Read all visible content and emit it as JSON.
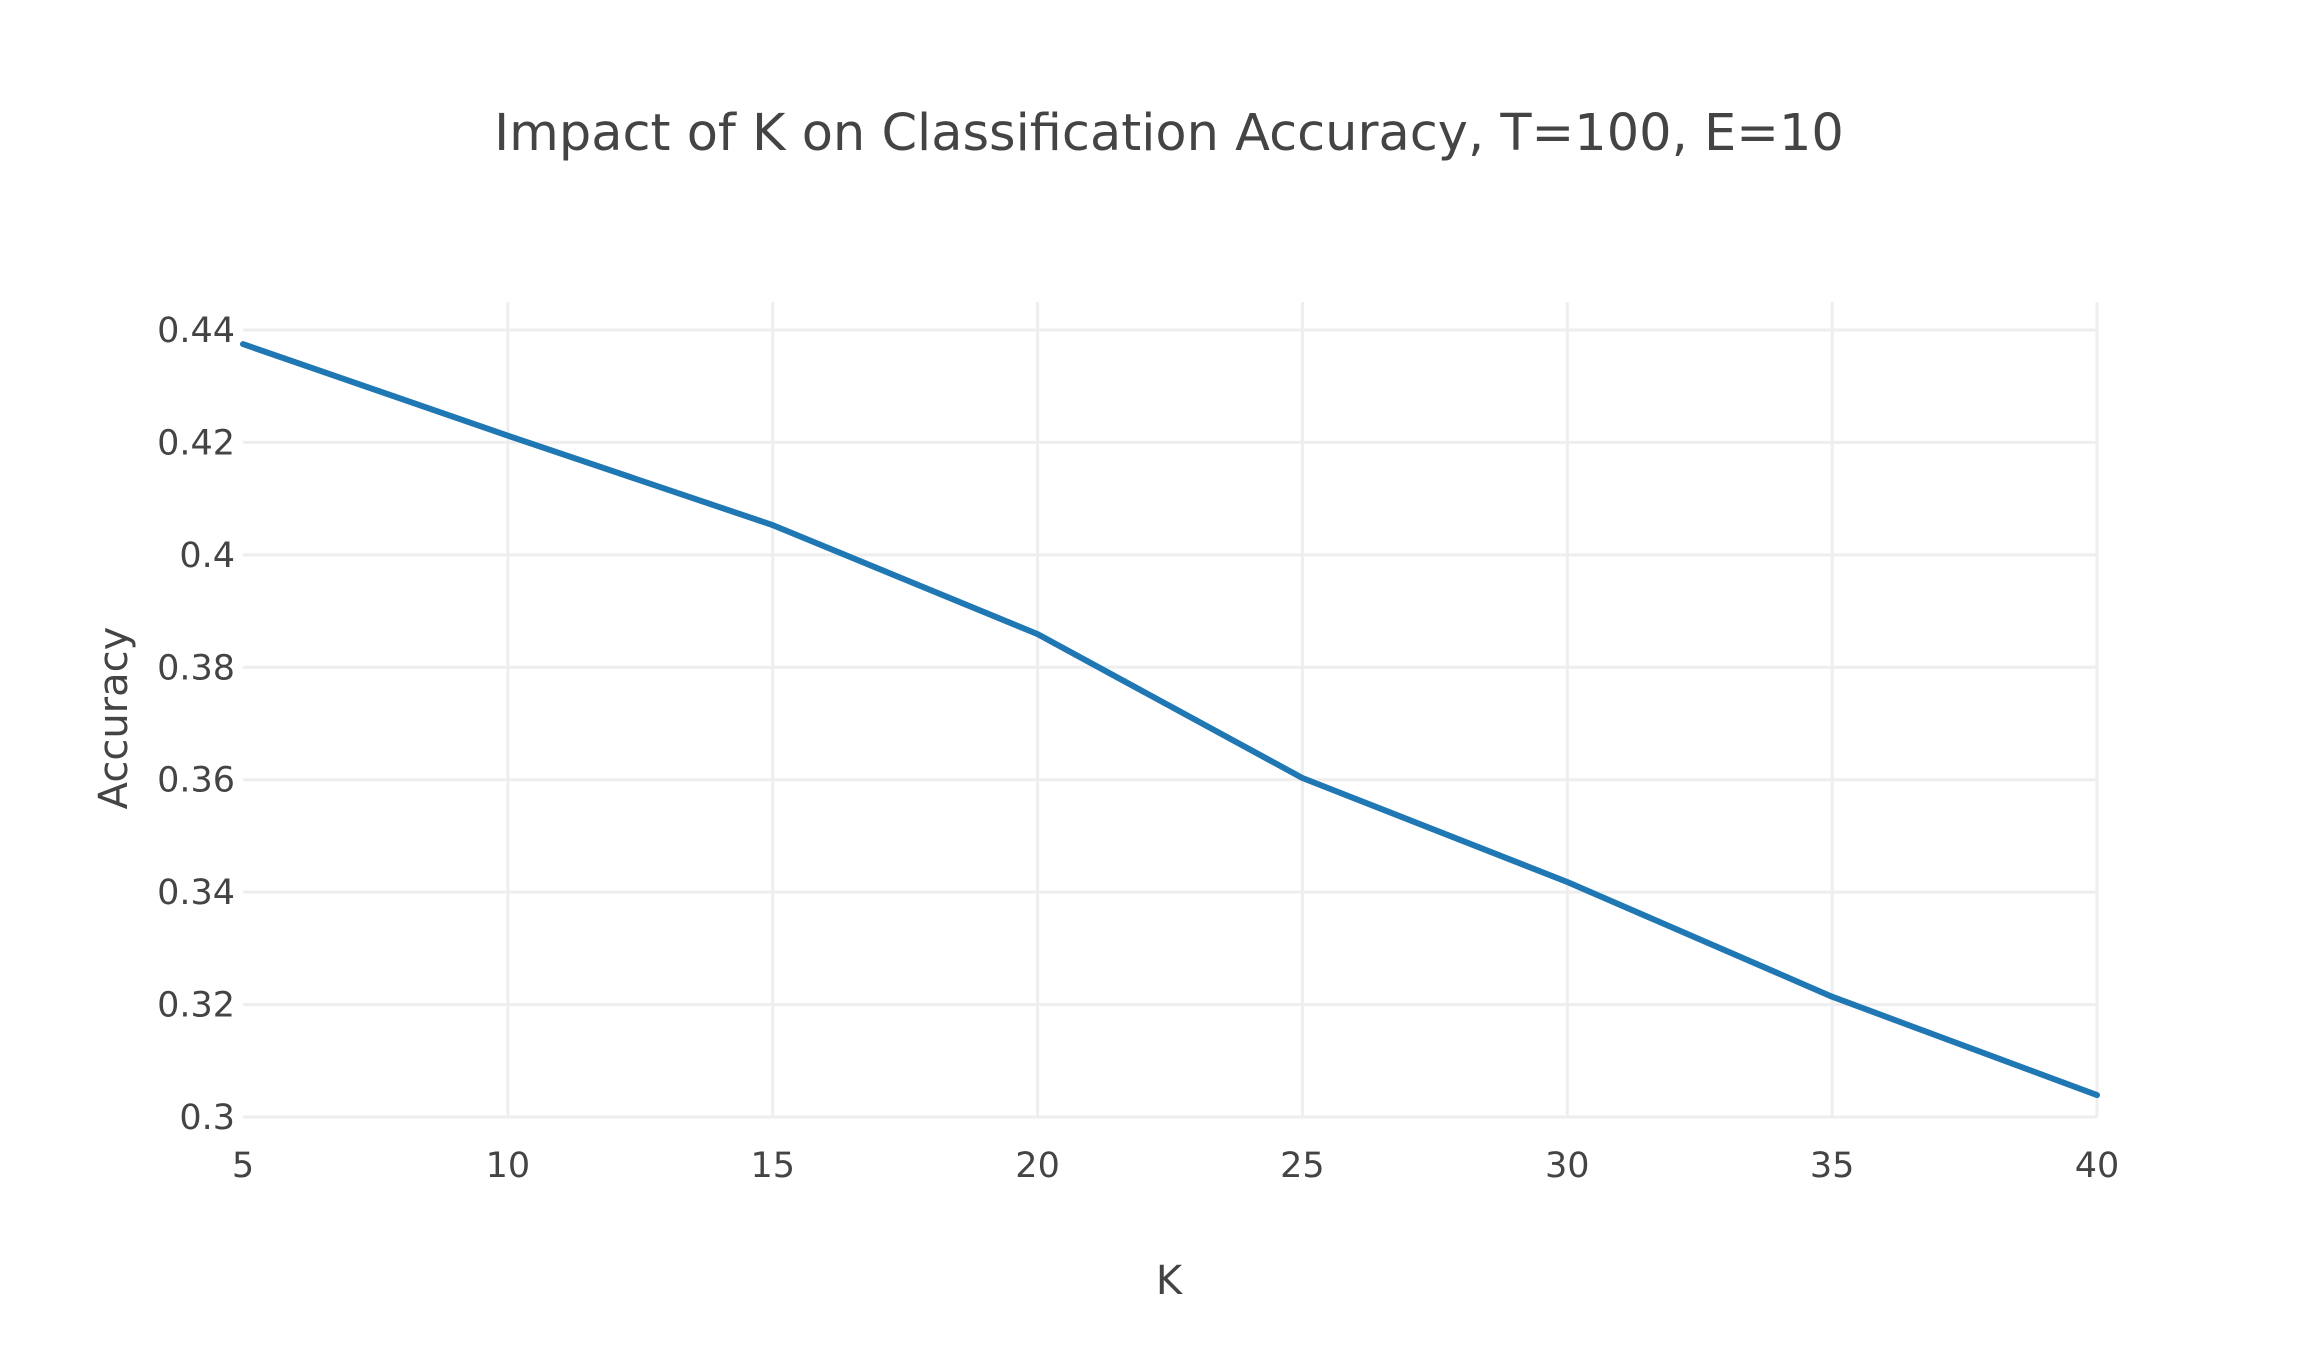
{
  "chart_data": {
    "type": "line",
    "title": "Impact of K on Classification Accuracy, T=100, E=10",
    "xlabel": "K",
    "ylabel": "Accuracy",
    "xlim": [
      5,
      40
    ],
    "ylim": [
      0.3,
      0.44
    ],
    "x_ticks": [
      5,
      10,
      15,
      20,
      25,
      30,
      35,
      40
    ],
    "y_ticks": [
      0.3,
      0.32,
      0.34,
      0.36,
      0.38,
      0.4,
      0.42,
      0.44
    ],
    "x_tick_labels": [
      "5",
      "10",
      "15",
      "20",
      "25",
      "30",
      "35",
      "40"
    ],
    "y_tick_labels": [
      "0.3",
      "0.32",
      "0.34",
      "0.36",
      "0.38",
      "0.4",
      "0.42",
      "0.44"
    ],
    "grid": true,
    "legend": false,
    "series": [
      {
        "color": "#1f77b4",
        "x": [
          5,
          10,
          15,
          20,
          25,
          30,
          35,
          40
        ],
        "y": [
          0.4375,
          0.4212,
          0.4053,
          0.3859,
          0.3603,
          0.3418,
          0.3214,
          0.3039
        ]
      }
    ]
  }
}
